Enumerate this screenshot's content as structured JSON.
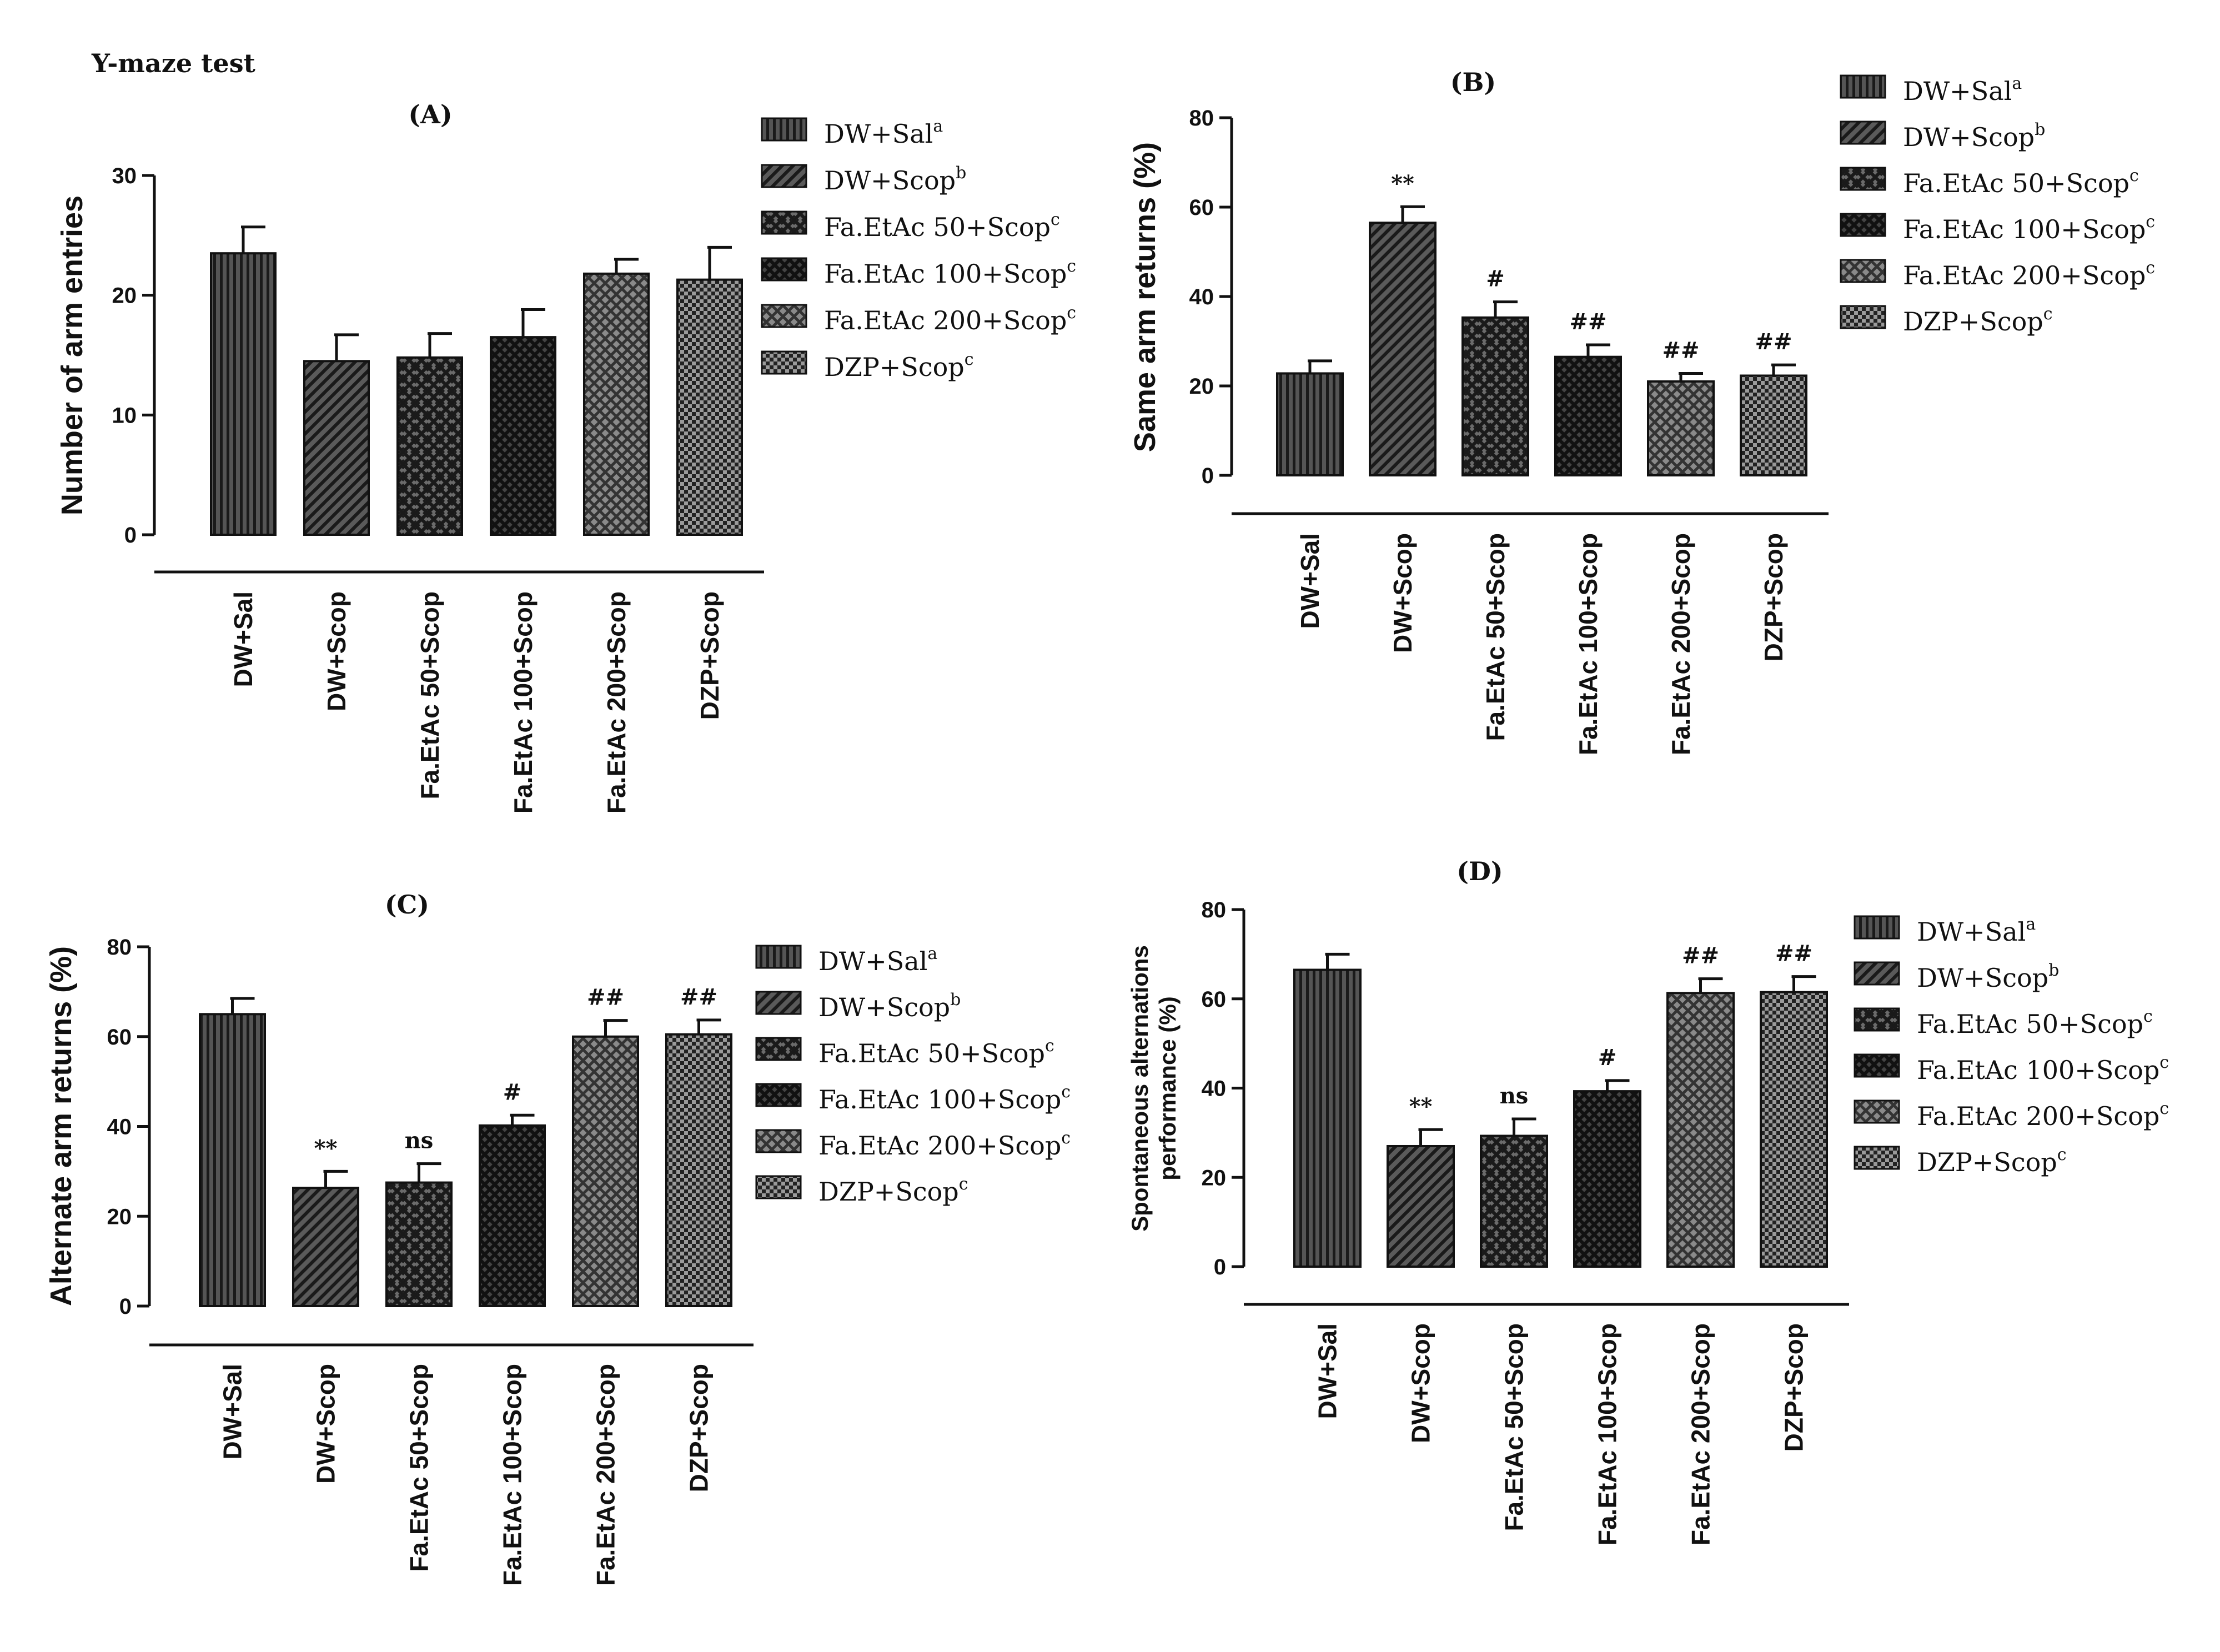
{
  "figure": {
    "title": "Y-maze test",
    "categories": [
      "DW+Sal",
      "DW+Scop",
      "Fa.EtAc 50+Scop",
      "Fa.EtAc 100+Scop",
      "Fa.EtAc 200+Scop",
      "DZP+Scop"
    ],
    "legend": [
      {
        "label": "DW+Sal",
        "sup": "a",
        "pattern": "vertical"
      },
      {
        "label": "DW+Scop",
        "sup": "b",
        "pattern": "diagonal"
      },
      {
        "label": "Fa.EtAc 50+Scop",
        "sup": "c",
        "pattern": "crosshatch"
      },
      {
        "label": "Fa.EtAc 100+Scop",
        "sup": "c",
        "pattern": "crosshatch-dense"
      },
      {
        "label": "Fa.EtAc 200+Scop",
        "sup": "c",
        "pattern": "crosshatch-gray"
      },
      {
        "label": "DZP+Scop",
        "sup": "c",
        "pattern": "checker"
      }
    ],
    "bar_fill_color": "#555555",
    "text_color": "#111111"
  },
  "chart_data": [
    {
      "type": "bar",
      "panel": "(A)",
      "ylabel": "Number of arm entries",
      "xlabel": "",
      "ylim": [
        0,
        30
      ],
      "yticks": [
        0,
        10,
        20,
        30
      ],
      "categories": [
        "DW+Sal",
        "DW+Scop",
        "Fa.EtAc 50+Scop",
        "Fa.EtAc 100+Scop",
        "Fa.EtAc 200+Scop",
        "DZP+Scop"
      ],
      "values": [
        23.5,
        14.5,
        14.8,
        16.5,
        21.8,
        21.3
      ],
      "errors": [
        2.2,
        2.2,
        2.0,
        2.3,
        1.2,
        2.7
      ],
      "annotations": [
        "",
        "",
        "",
        "",
        "",
        ""
      ]
    },
    {
      "type": "bar",
      "panel": "(B)",
      "ylabel": "Same arm returns (%)",
      "xlabel": "",
      "ylim": [
        0,
        80
      ],
      "yticks": [
        0,
        20,
        40,
        60,
        80
      ],
      "categories": [
        "DW+Sal",
        "DW+Scop",
        "Fa.EtAc 50+Scop",
        "Fa.EtAc 100+Scop",
        "Fa.EtAc 200+Scop",
        "DZP+Scop"
      ],
      "values": [
        22.8,
        56.5,
        35.3,
        26.5,
        21.0,
        22.3
      ],
      "errors": [
        2.8,
        3.6,
        3.5,
        2.7,
        1.8,
        2.4
      ],
      "annotations": [
        "",
        "**",
        "#",
        "##",
        "##",
        "##"
      ]
    },
    {
      "type": "bar",
      "panel": "(C)",
      "ylabel": "Alternate arm returns (%)",
      "xlabel": "",
      "ylim": [
        0,
        80
      ],
      "yticks": [
        0,
        20,
        40,
        60,
        80
      ],
      "categories": [
        "DW+Sal",
        "DW+Scop",
        "Fa.EtAc 50+Scop",
        "Fa.EtAc 100+Scop",
        "Fa.EtAc 200+Scop",
        "DZP+Scop"
      ],
      "values": [
        65.0,
        26.3,
        27.5,
        40.2,
        60.0,
        60.5
      ],
      "errors": [
        3.5,
        3.7,
        4.2,
        2.3,
        3.6,
        3.2
      ],
      "annotations": [
        "",
        "**",
        "ns",
        "#",
        "##",
        "##"
      ]
    },
    {
      "type": "bar",
      "panel": "(D)",
      "ylabel": "Spontaneous alternations performance (%)",
      "ylabel_lines": [
        "Spontaneous alternations",
        "performance   (%)"
      ],
      "xlabel": "",
      "ylim": [
        0,
        80
      ],
      "yticks": [
        0,
        20,
        40,
        60,
        80
      ],
      "categories": [
        "DW+Sal",
        "DW+Scop",
        "Fa.EtAc 50+Scop",
        "Fa.EtAc 100+Scop",
        "Fa.EtAc 200+Scop",
        "DZP+Scop"
      ],
      "values": [
        66.5,
        27.0,
        29.3,
        39.3,
        61.3,
        61.5
      ],
      "errors": [
        3.5,
        3.7,
        3.8,
        2.4,
        3.2,
        3.5
      ],
      "annotations": [
        "",
        "**",
        "ns",
        "#",
        "##",
        "##"
      ]
    }
  ]
}
